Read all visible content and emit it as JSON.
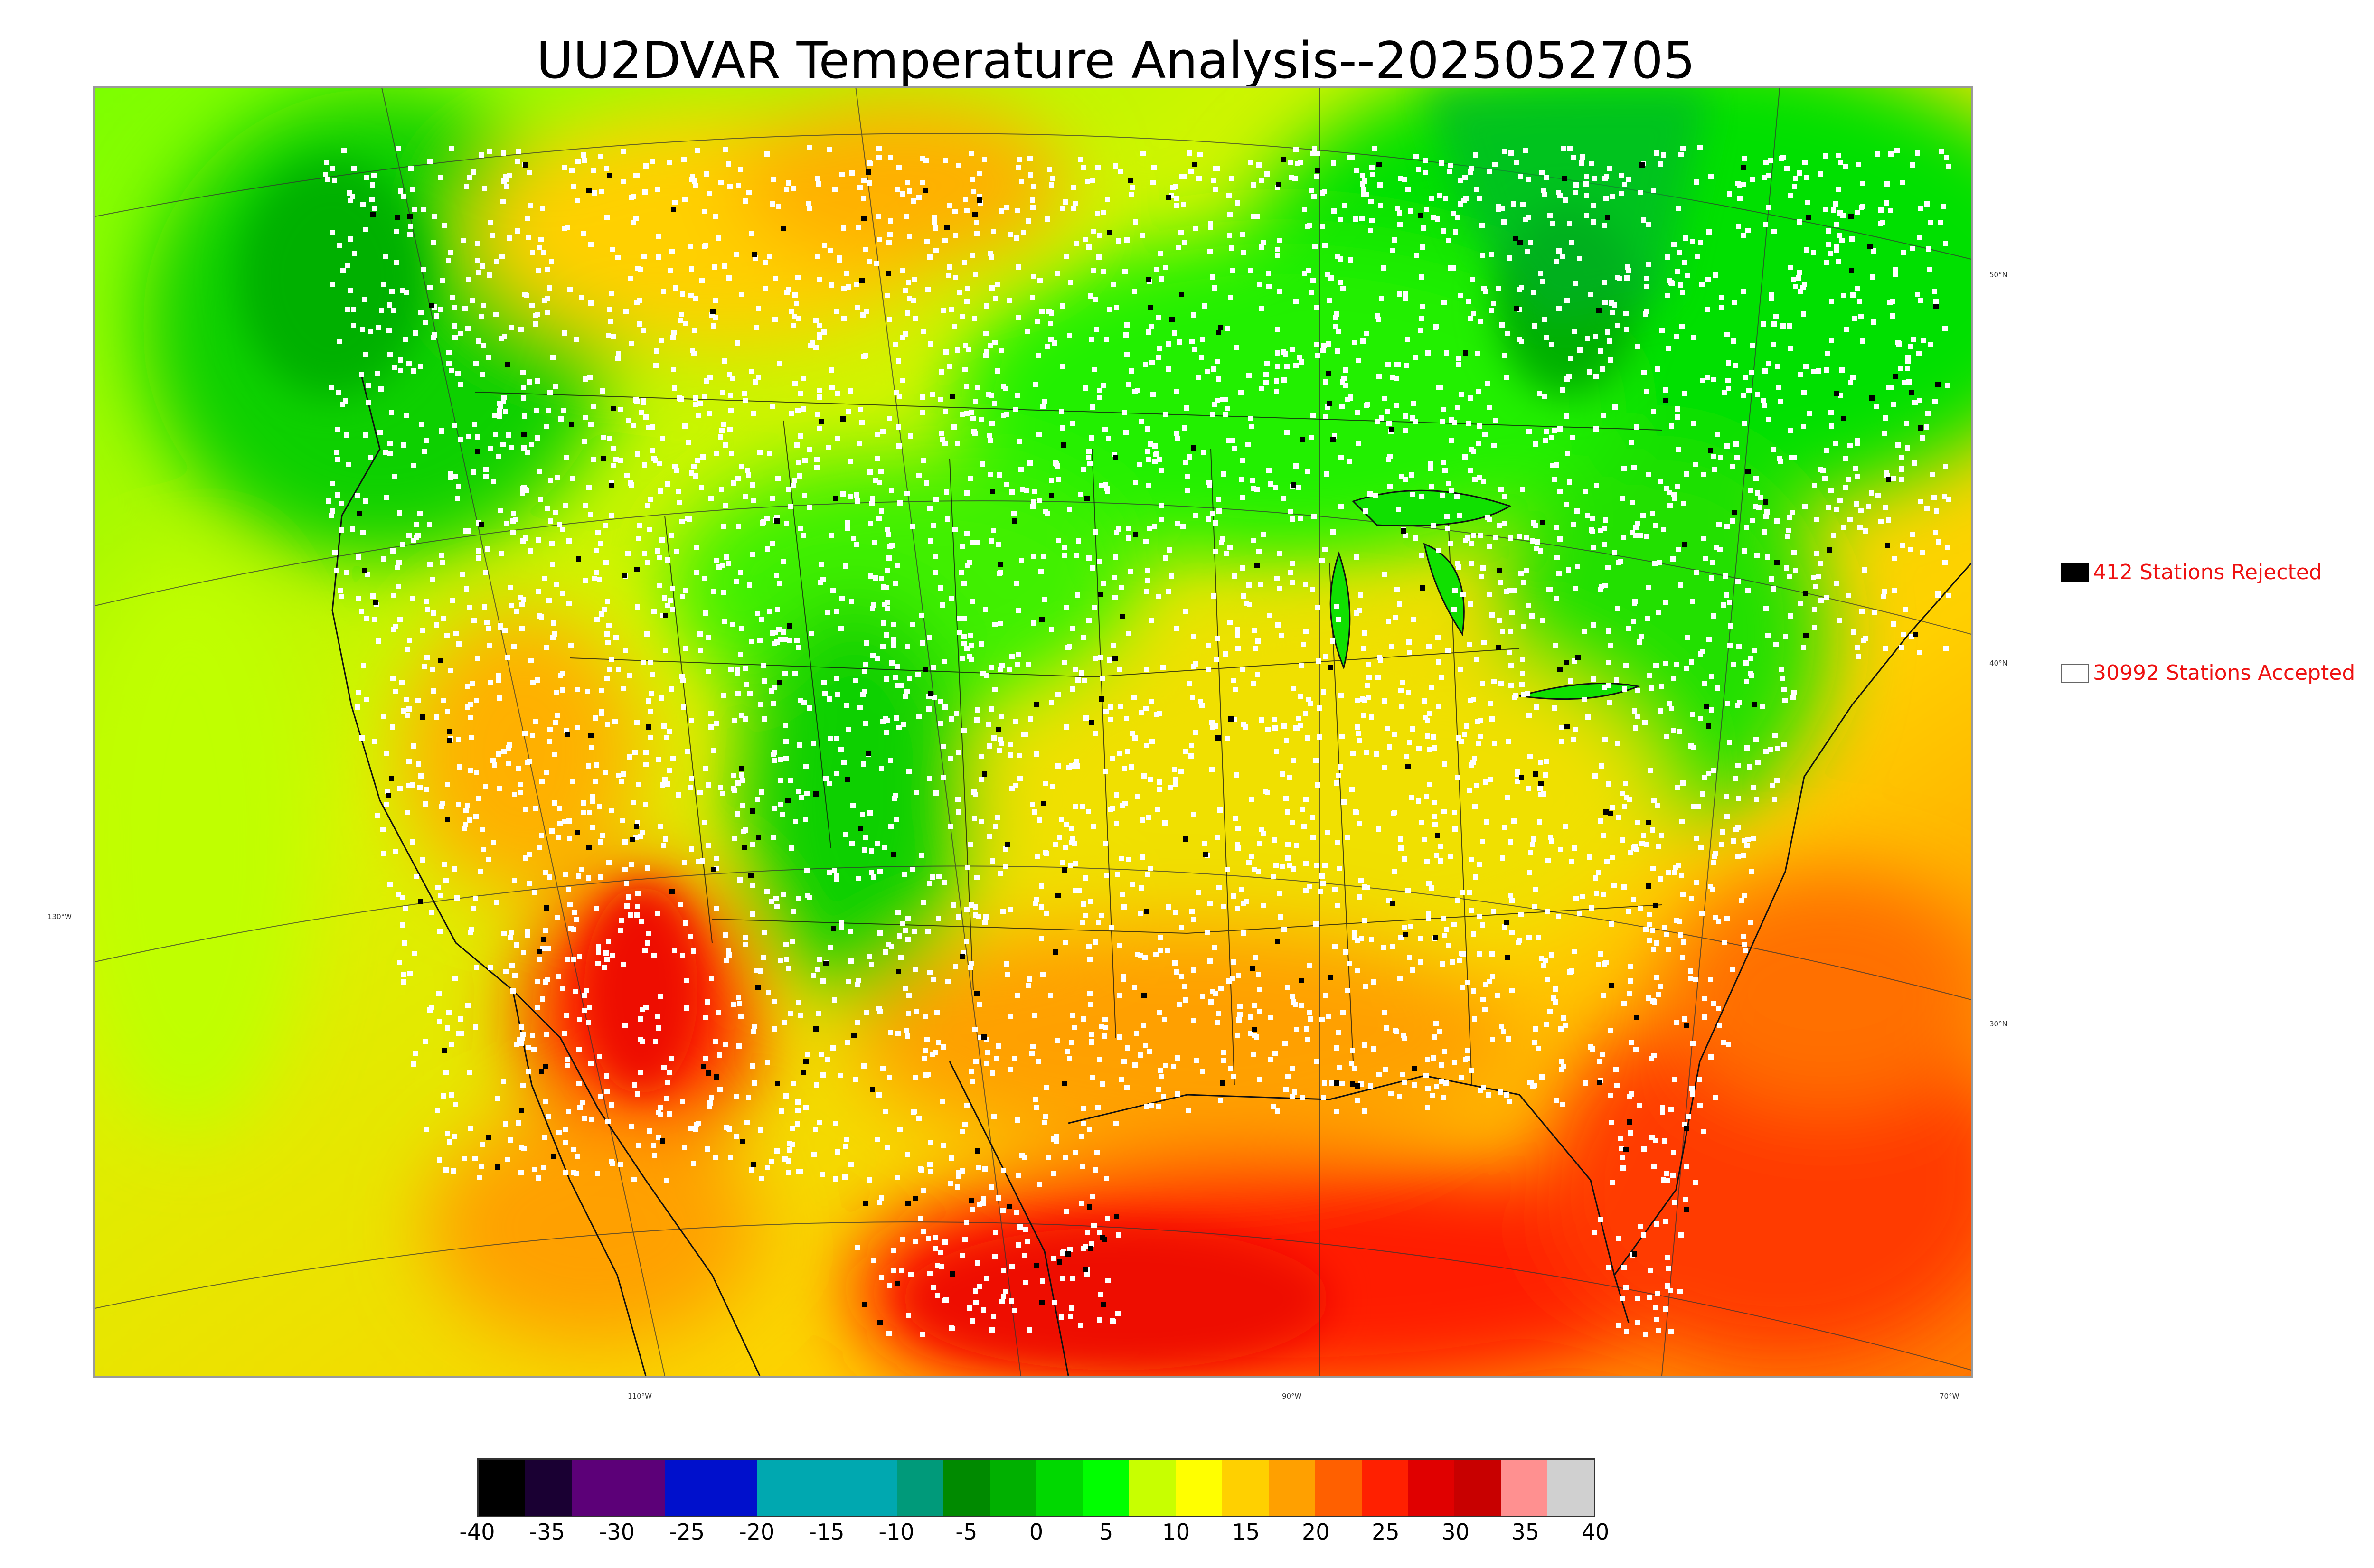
{
  "title": "UU2DVAR Temperature Analysis--2025052705",
  "legend": {
    "rejected": {
      "label": "412 Stations Rejected",
      "color": "#000000"
    },
    "accepted": {
      "label": "30992 Stations Accepted",
      "color": "#ffffff"
    }
  },
  "map_labels": {
    "lat_50": "50°N",
    "lat_40": "40°N",
    "lat_30": "30°N",
    "lon_130": "130°W",
    "lon_110": "110°W",
    "lon_90": "90°W",
    "lon_70": "70°W"
  },
  "colorbar": {
    "min": -40,
    "max": 40,
    "ticks": [
      "-40",
      "-35",
      "-30",
      "-25",
      "-20",
      "-15",
      "-10",
      "-5",
      "0",
      "5",
      "10",
      "15",
      "20",
      "25",
      "30",
      "35",
      "40"
    ],
    "colors": [
      "#000000",
      "#1a0033",
      "#5c0078",
      "#5c0078",
      "#0010cc",
      "#0010cc",
      "#00a8b0",
      "#00a8b0",
      "#00a8b0",
      "#009a7a",
      "#008a00",
      "#00b000",
      "#00d800",
      "#00ff00",
      "#c8ff00",
      "#ffff00",
      "#ffd000",
      "#ffa000",
      "#ff6000",
      "#ff2000",
      "#e00000",
      "#c80000",
      "#ff9090",
      "#d0d0d0"
    ]
  },
  "colors": {
    "cold_green": "#00c000",
    "mild_green": "#40ff00",
    "lime": "#c8ff00",
    "yellow": "#f0f000",
    "orange": "#ffa000",
    "hot": "#ff2a00",
    "very_hot": "#ee1100"
  }
}
